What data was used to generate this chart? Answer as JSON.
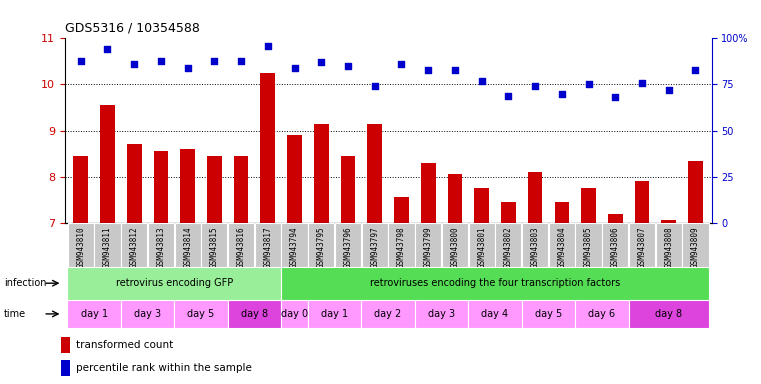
{
  "title": "GDS5316 / 10354588",
  "samples": [
    "GSM943810",
    "GSM943811",
    "GSM943812",
    "GSM943813",
    "GSM943814",
    "GSM943815",
    "GSM943816",
    "GSM943817",
    "GSM943794",
    "GSM943795",
    "GSM943796",
    "GSM943797",
    "GSM943798",
    "GSM943799",
    "GSM943800",
    "GSM943801",
    "GSM943802",
    "GSM943803",
    "GSM943804",
    "GSM943805",
    "GSM943806",
    "GSM943807",
    "GSM943808",
    "GSM943809"
  ],
  "bar_values": [
    8.45,
    9.55,
    8.7,
    8.55,
    8.6,
    8.45,
    8.45,
    10.25,
    8.9,
    9.15,
    8.45,
    9.15,
    7.55,
    8.3,
    8.05,
    7.75,
    7.45,
    8.1,
    7.45,
    7.75,
    7.2,
    7.9,
    7.05,
    8.35
  ],
  "dot_values": [
    88,
    94,
    86,
    88,
    84,
    88,
    88,
    96,
    84,
    87,
    85,
    74,
    86,
    83,
    83,
    77,
    69,
    74,
    70,
    75,
    68,
    76,
    72,
    83
  ],
  "bar_color": "#cc0000",
  "dot_color": "#0000cc",
  "ymin": 7,
  "ymax": 11,
  "ylim_right": [
    0,
    100
  ],
  "yticks_left": [
    7,
    8,
    9,
    10,
    11
  ],
  "yticks_right": [
    0,
    25,
    50,
    75,
    100
  ],
  "ytick_labels_right": [
    "0",
    "25",
    "50",
    "75",
    "100%"
  ],
  "infection_groups": [
    {
      "label": "retrovirus encoding GFP",
      "start": 0,
      "end": 8,
      "color": "#99ee99"
    },
    {
      "label": "retroviruses encoding the four transcription factors",
      "start": 8,
      "end": 24,
      "color": "#55dd55"
    }
  ],
  "time_groups": [
    {
      "label": "day 1",
      "start": 0,
      "end": 2,
      "color": "#ff99ff"
    },
    {
      "label": "day 3",
      "start": 2,
      "end": 4,
      "color": "#ff99ff"
    },
    {
      "label": "day 5",
      "start": 4,
      "end": 6,
      "color": "#ff99ff"
    },
    {
      "label": "day 8",
      "start": 6,
      "end": 8,
      "color": "#dd44dd"
    },
    {
      "label": "day 0",
      "start": 8,
      "end": 9,
      "color": "#ff99ff"
    },
    {
      "label": "day 1",
      "start": 9,
      "end": 11,
      "color": "#ff99ff"
    },
    {
      "label": "day 2",
      "start": 11,
      "end": 13,
      "color": "#ff99ff"
    },
    {
      "label": "day 3",
      "start": 13,
      "end": 15,
      "color": "#ff99ff"
    },
    {
      "label": "day 4",
      "start": 15,
      "end": 17,
      "color": "#ff99ff"
    },
    {
      "label": "day 5",
      "start": 17,
      "end": 19,
      "color": "#ff99ff"
    },
    {
      "label": "day 6",
      "start": 19,
      "end": 21,
      "color": "#ff99ff"
    },
    {
      "label": "day 8",
      "start": 21,
      "end": 24,
      "color": "#dd44dd"
    }
  ],
  "infection_label": "infection",
  "time_label": "time",
  "legend_bar_label": "transformed count",
  "legend_dot_label": "percentile rank within the sample",
  "tick_label_bg": "#c8c8c8",
  "plot_bg": "#ffffff"
}
